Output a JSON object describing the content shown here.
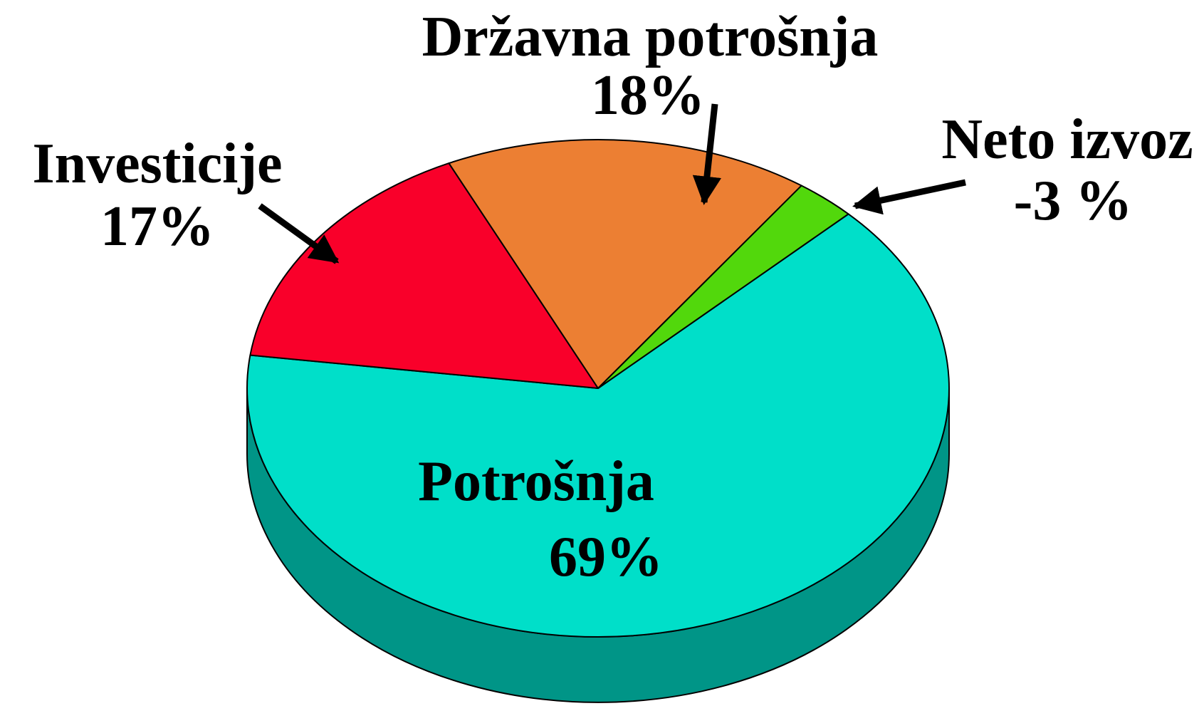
{
  "chart_data": {
    "type": "pie",
    "categories": [
      "Potrošnja",
      "Investicije",
      "Državna potrošnja",
      "Neto izvoz"
    ],
    "values": [
      69,
      17,
      18,
      -3
    ],
    "value_labels": [
      "69%",
      "17%",
      "18%",
      "-3 %"
    ],
    "colors": [
      "#00dfc9",
      "#f9002a",
      "#ec7f33",
      "#52d80c"
    ]
  }
}
